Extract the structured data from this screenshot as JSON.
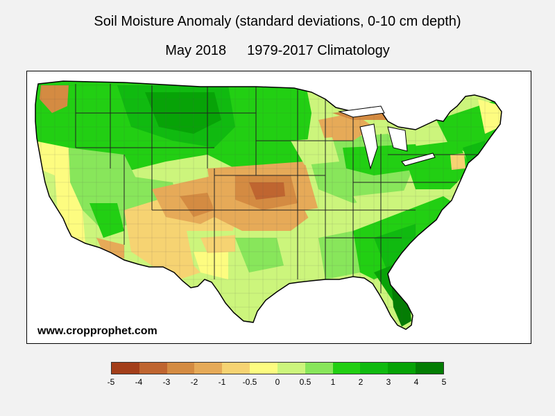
{
  "title": "Soil Moisture Anomaly (standard deviations, 0-10 cm depth)",
  "subtitle": {
    "period": "May 2018",
    "climatology": "1979-2017 Climatology"
  },
  "website": "www.cropprophet.com",
  "legend": {
    "colors": [
      "#a33e1a",
      "#bf6530",
      "#d48b42",
      "#e6aa58",
      "#f6d372",
      "#fdfc80",
      "#ccf57c",
      "#88e65b",
      "#22cf13",
      "#10ba10",
      "#07a307",
      "#047d04"
    ],
    "labels": [
      "-5",
      "-4",
      "-3",
      "-2",
      "-1",
      "-0.5",
      "0",
      "0.5",
      "1",
      "2",
      "3",
      "4",
      "5"
    ]
  },
  "map": {
    "regions": [
      {
        "name": "pacific-northwest",
        "level": "1 to 2"
      },
      {
        "name": "northern-plains",
        "level": "2 to 3"
      },
      {
        "name": "southern-plains",
        "level": "-2 to -1"
      },
      {
        "name": "four-corners",
        "level": "-1 to -0.5"
      },
      {
        "name": "southeast",
        "level": "1 to 3"
      },
      {
        "name": "florida",
        "level": "2 to 4"
      },
      {
        "name": "great-lakes-north",
        "level": "-2 to -1"
      },
      {
        "name": "northeast",
        "level": "-1 to 2"
      },
      {
        "name": "california-coast",
        "level": "-0.5 to 0.5"
      },
      {
        "name": "texas",
        "level": "0 to 1"
      }
    ]
  }
}
